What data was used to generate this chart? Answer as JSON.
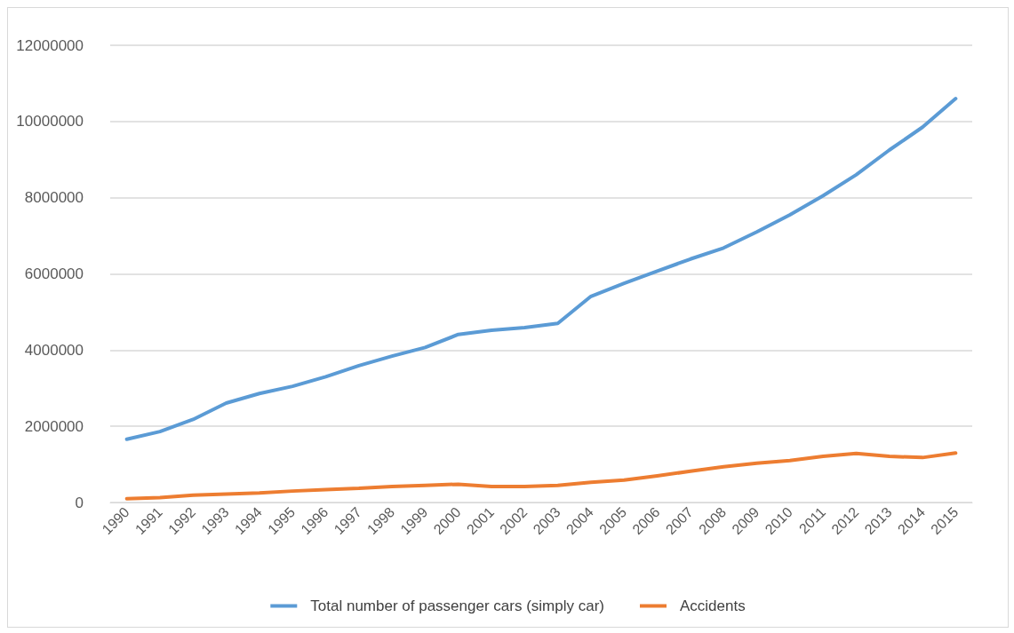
{
  "chart_data": {
    "type": "line",
    "categories": [
      "1990",
      "1991",
      "1992",
      "1993",
      "1994",
      "1995",
      "1996",
      "1997",
      "1998",
      "1999",
      "2000",
      "2001",
      "2002",
      "2003",
      "2004",
      "2005",
      "2006",
      "2007",
      "2008",
      "2009",
      "2010",
      "2011",
      "2012",
      "2013",
      "2014",
      "2015"
    ],
    "series": [
      {
        "name": "Total number of passenger cars (simply car)",
        "color": "#5b9bd5",
        "values": [
          1660000,
          1860000,
          2180000,
          2610000,
          2860000,
          3050000,
          3300000,
          3590000,
          3840000,
          4070000,
          4410000,
          4520000,
          4590000,
          4700000,
          5410000,
          5750000,
          6070000,
          6390000,
          6680000,
          7100000,
          7550000,
          8050000,
          8600000,
          9250000,
          9850000,
          10600000
        ]
      },
      {
        "name": "Accidents",
        "color": "#ed7d31",
        "values": [
          100000,
          130000,
          190000,
          220000,
          250000,
          300000,
          340000,
          370000,
          420000,
          450000,
          480000,
          420000,
          420000,
          450000,
          530000,
          590000,
          700000,
          820000,
          940000,
          1030000,
          1100000,
          1210000,
          1290000,
          1210000,
          1180000,
          1300000
        ]
      }
    ],
    "ylim": [
      0,
      12000000
    ],
    "yticks": [
      0,
      2000000,
      4000000,
      6000000,
      8000000,
      10000000,
      12000000
    ],
    "grid": "y",
    "legend": "bottom",
    "marker": "none",
    "line_style": "solid"
  }
}
